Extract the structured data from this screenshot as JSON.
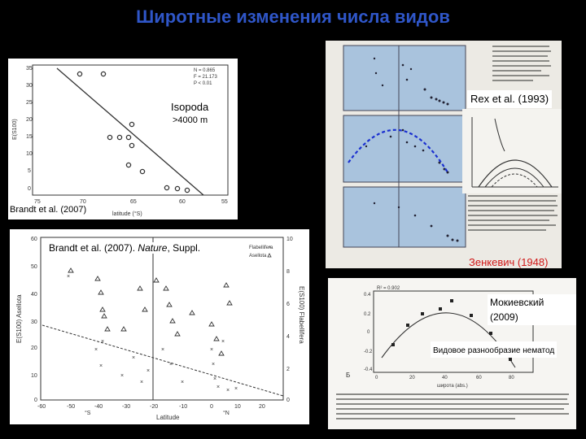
{
  "slide": {
    "title": "Широтные изменения числа видов"
  },
  "isopoda_panel": {
    "label": "Isopoda",
    "depth": ">4000 m",
    "citation": "Brandt et al. (2007)",
    "stats": [
      "N = 0.865",
      "F = 21.173",
      "P < 0.01"
    ],
    "ylabel": "E(S100)",
    "xlabel": "latitude (°S)"
  },
  "rex_panel": {
    "citation": "Rex et al. (1993)"
  },
  "zenkevich_panel": {
    "citation": "Зенкевич (1948)"
  },
  "brandt_nature_panel": {
    "citation": "Brandt et al. (2007). ",
    "citation_journal": "Nature",
    "citation_tail": ", Suppl.",
    "legend": [
      "Flabellifera",
      "Asellota"
    ],
    "ylabel_left": "E(S100) Asellota",
    "ylabel_right": "E(S100) Flabellifera",
    "xlabel": "Latitude",
    "hemi_s": "°S",
    "hemi_n": "°N"
  },
  "mokievsky_panel": {
    "citation": "Мокиевский (2009)",
    "caption": "Видовое разнообразие нематод",
    "stat": "R² = 0.902",
    "xlabel": "широта (abs.)",
    "panel_letter": "Б"
  },
  "colors": {
    "title": "#2f56c8",
    "citation_red": "#d01818",
    "background": "#000000",
    "scan_blue": "#a9c3dd",
    "fit_blue": "#1a2fd0"
  }
}
